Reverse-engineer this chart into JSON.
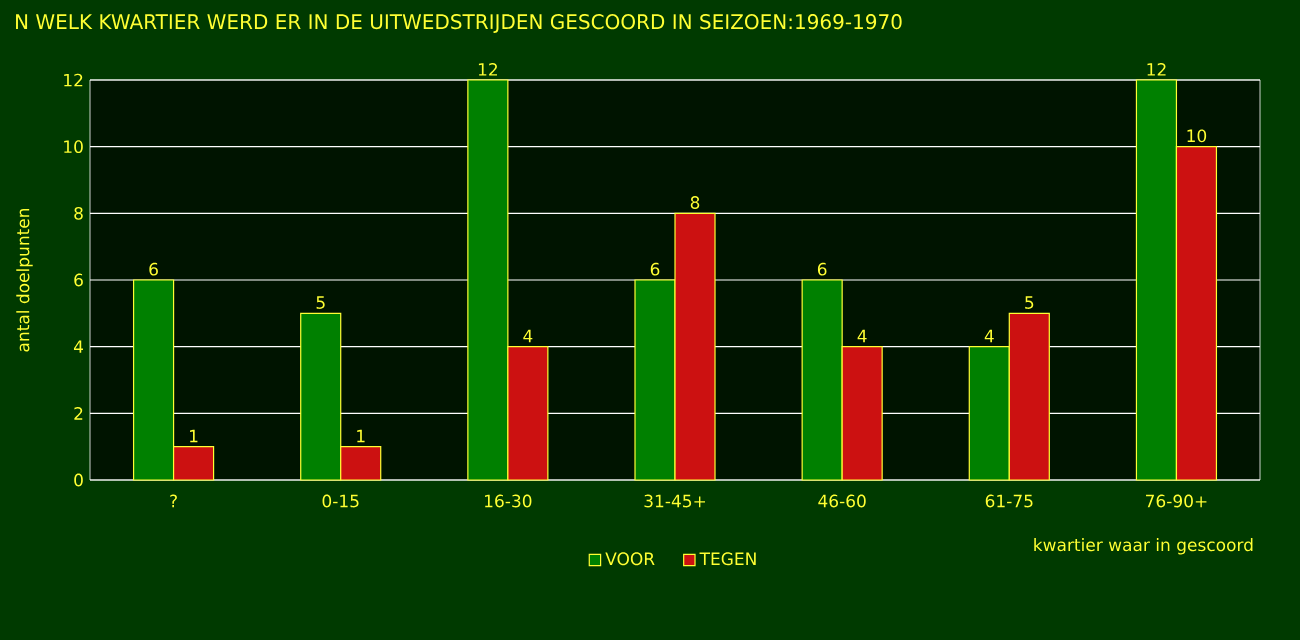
{
  "chart_data": {
    "type": "bar",
    "title": "N WELK KWARTIER WERD ER IN DE UITWEDSTRIJDEN GESCOORD IN SEIZOEN:1969-1970",
    "xlabel": "kwartier waar in gescoord",
    "ylabel": "antal doelpunten",
    "categories": [
      "?",
      "0-15",
      "16-30",
      "31-45+",
      "46-60",
      "61-75",
      "76-90+"
    ],
    "series": [
      {
        "name": "VOOR",
        "color": "#008000",
        "values": [
          6,
          5,
          12,
          6,
          6,
          4,
          12
        ]
      },
      {
        "name": "TEGEN",
        "color": "#cc1111",
        "values": [
          1,
          1,
          4,
          8,
          4,
          5,
          10
        ]
      }
    ],
    "ylim": [
      0,
      12
    ],
    "yticks": [
      0,
      2,
      4,
      6,
      8,
      10,
      12
    ],
    "grid": "y",
    "legend": "bottom",
    "data_labels": true
  }
}
